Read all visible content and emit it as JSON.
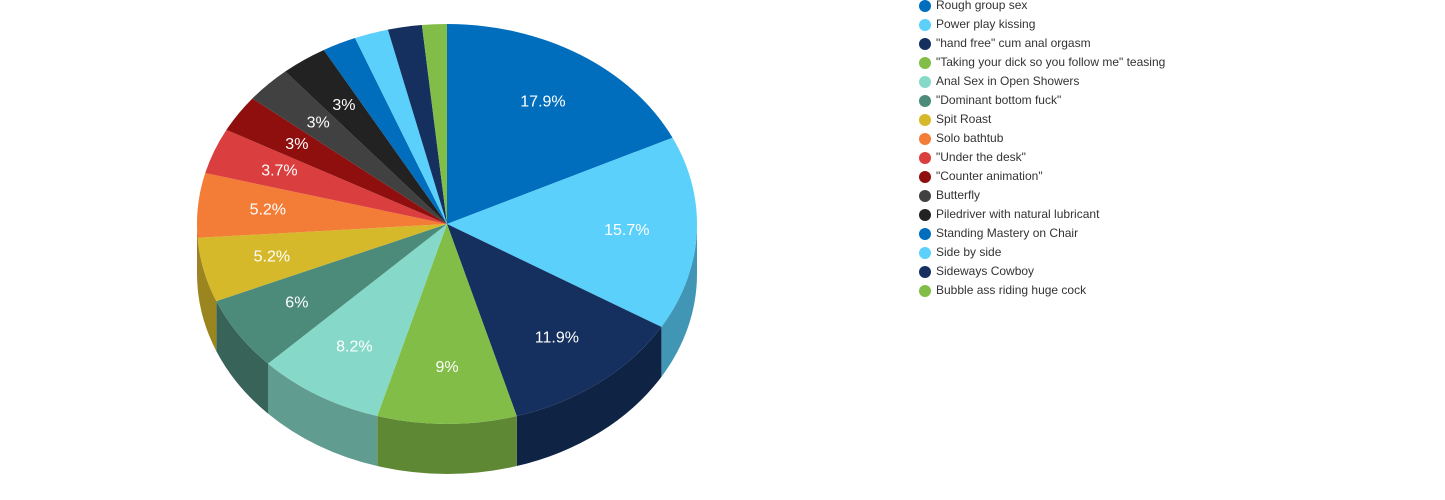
{
  "chart_data": {
    "type": "pie3d",
    "categories": [
      "Rough group sex",
      "Power play kissing",
      "\"hand free\" cum anal orgasm",
      "\"Taking your dick so you follow me\" teasing",
      "Anal Sex in Open Showers",
      "\"Dominant bottom fuck\"",
      "Spit Roast",
      "Solo bathtub",
      "\"Under the desk\"",
      "\"Counter animation\"",
      "Butterfly",
      "Piledriver with natural lubricant",
      "Standing Mastery on Chair",
      "Side by side",
      "Sideways Cowboy",
      "Bubble ass riding huge cock"
    ],
    "values": [
      17.9,
      15.7,
      11.9,
      9,
      8.2,
      6,
      5.2,
      5.2,
      3.7,
      3,
      3,
      3,
      2.2,
      2.2,
      2.2,
      1.6
    ],
    "value_labels": [
      "17.9%",
      "15.7%",
      "11.9%",
      "9%",
      "8.2%",
      "6%",
      "5.2%",
      "5.2%",
      "3.7%",
      "3%",
      "3%",
      "3%",
      null,
      null,
      null,
      null
    ],
    "colors": [
      "#006ebc",
      "#5ad0fb",
      "#15305f",
      "#82bd48",
      "#86d9c8",
      "#4c8a7a",
      "#d6b92a",
      "#f37d36",
      "#db3e3e",
      "#8e0f0e",
      "#414141",
      "#222222",
      "#006ebc",
      "#5ad0fb",
      "#15305f",
      "#82bd48"
    ],
    "legend": "top-right"
  }
}
